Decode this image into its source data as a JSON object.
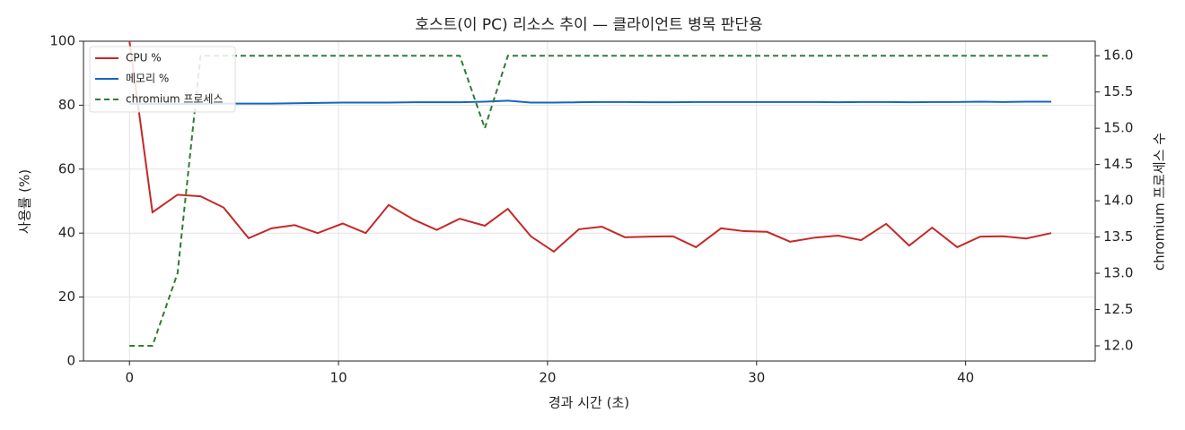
{
  "chart_data": {
    "type": "line",
    "title": "호스트(이 PC) 리소스 추이 — 클라이언트 병목 판단용",
    "x_label": "경과 시간 (초)",
    "y_label": "사용률 (%)",
    "y2_label": "chromium 프로세스 수",
    "x": [
      0,
      1.1,
      2.3,
      3.4,
      4.5,
      5.7,
      6.8,
      7.9,
      9.0,
      10.2,
      11.3,
      12.4,
      13.6,
      14.7,
      15.8,
      17.0,
      18.1,
      19.2,
      20.3,
      21.5,
      22.6,
      23.7,
      24.9,
      26.0,
      27.1,
      28.3,
      29.4,
      30.5,
      31.6,
      32.8,
      33.9,
      35.0,
      36.2,
      37.3,
      38.4,
      39.6,
      40.7,
      41.8,
      42.9,
      44.1
    ],
    "series": [
      {
        "name": "CPU %",
        "color": "#c62828",
        "dash": false,
        "values": [
          100,
          46.5,
          52,
          51.5,
          48,
          38.4,
          41.5,
          42.5,
          40,
          43,
          40,
          48.8,
          44.2,
          41,
          44.5,
          42.3,
          47.6,
          39,
          34.2,
          41.2,
          42,
          38.7,
          38.9,
          39,
          35.6,
          41.5,
          40.6,
          40.4,
          37.3,
          38.6,
          39.2,
          37.8,
          42.9,
          36.1,
          41.7,
          35.6,
          38.9,
          39,
          38.3,
          40
        ]
      },
      {
        "name": "메모리 %",
        "color": "#1565c0",
        "dash": false,
        "values": [
          80.4,
          80.4,
          80.4,
          80.4,
          80.5,
          80.5,
          80.5,
          80.6,
          80.7,
          80.8,
          80.8,
          80.8,
          80.9,
          80.9,
          80.9,
          81.1,
          81.4,
          80.8,
          80.8,
          80.9,
          81.0,
          81.0,
          80.9,
          80.9,
          81.0,
          81.0,
          81.0,
          81.0,
          81.0,
          81.0,
          80.9,
          81.0,
          81.0,
          80.9,
          81.0,
          81.0,
          81.1,
          81.0,
          81.1,
          81.1
        ]
      },
      {
        "name": "chromium 프로세스",
        "color": "#2e7d32",
        "dash": true,
        "axis": "y2",
        "values": [
          12,
          12,
          13,
          16,
          16,
          16,
          16,
          16,
          16,
          16,
          16,
          16,
          16,
          16,
          16,
          15,
          16,
          16,
          16,
          16,
          16,
          16,
          16,
          16,
          16,
          16,
          16,
          16,
          16,
          16,
          16,
          16,
          16,
          16,
          16,
          16,
          16,
          16,
          16,
          16
        ]
      }
    ],
    "xlim": [
      -2.2,
      46.2
    ],
    "xticks": [
      0,
      10,
      20,
      30,
      40
    ],
    "ylim": [
      0,
      100
    ],
    "yticks": [
      0,
      20,
      40,
      60,
      80,
      100
    ],
    "y2lim": [
      11.79,
      16.2
    ],
    "y2ticks": [
      {
        "value": 12,
        "label": "12.0"
      },
      12.5,
      {
        "value": 13,
        "label": "13.0"
      },
      13.5,
      {
        "value": 14,
        "label": "14.0"
      },
      14.5,
      {
        "value": 15,
        "label": "15.0"
      },
      15.5,
      {
        "value": 16,
        "label": "16.0"
      }
    ],
    "grid": true,
    "legend": "upper left"
  }
}
